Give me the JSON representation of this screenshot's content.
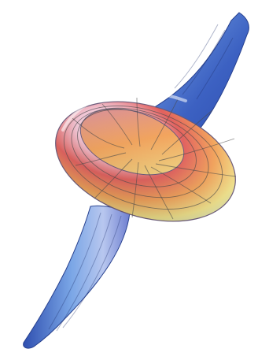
{
  "figure": {
    "subject": "3d-parametric-surface",
    "colors": {
      "background": "#ffffff",
      "stem_dark": "#2f4fb0",
      "stem_light": "#7aa6e6",
      "flare_red": "#e2605d",
      "flare_orange": "#f3a35b",
      "flare_yellow": "#f3e48c",
      "flare_pink": "#f2c6d6",
      "flare_violet": "#b59cd8",
      "flare_mint": "#cde9d6",
      "mesh": "#4a4a4a"
    }
  }
}
